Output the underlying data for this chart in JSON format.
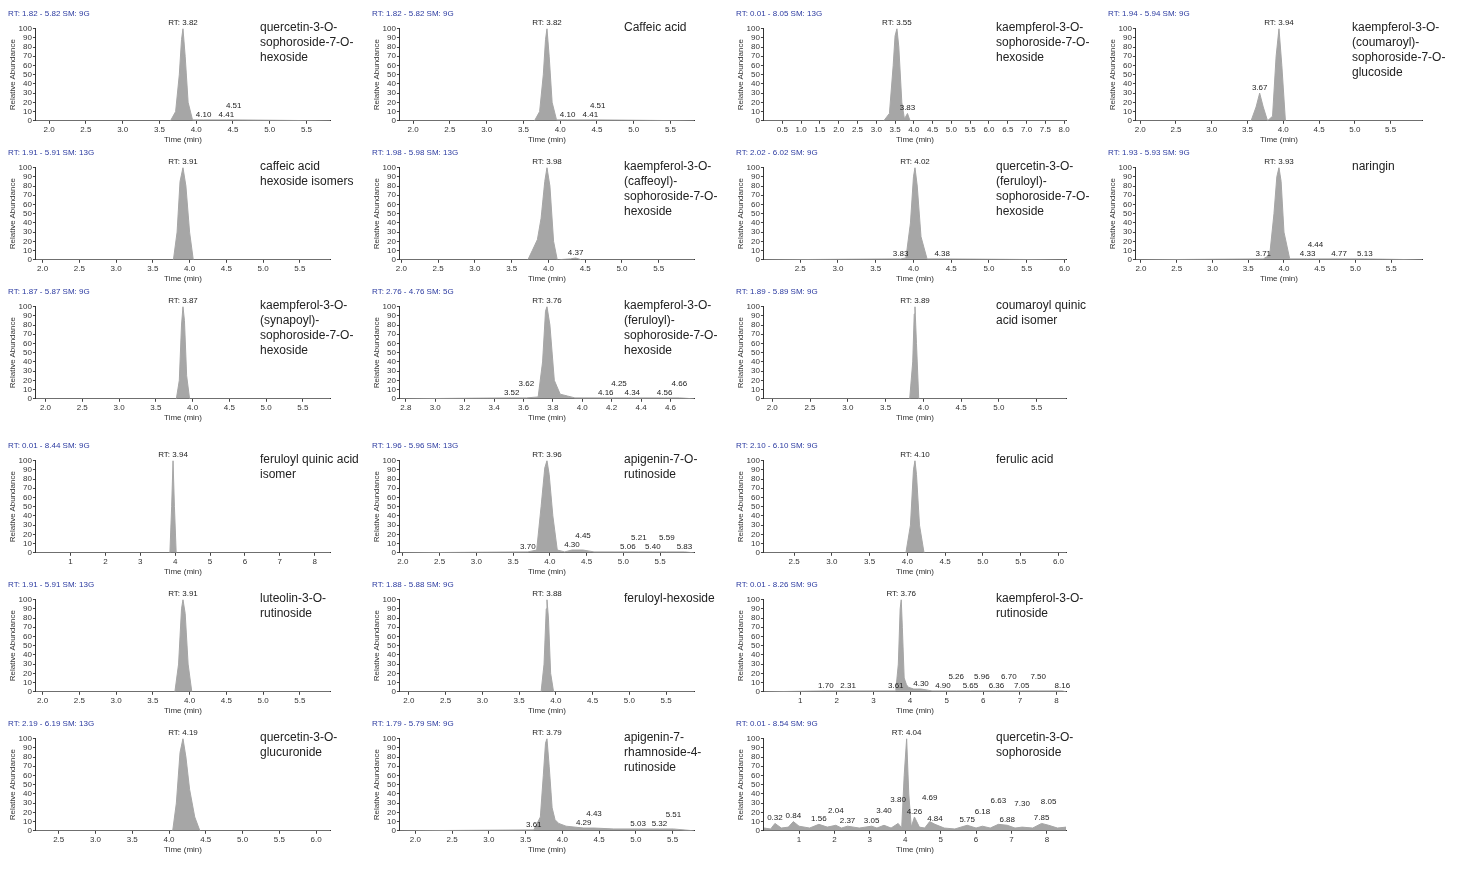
{
  "chart_data": [
    {
      "type": "area",
      "title": "quercetin-3-O-sophoroside-7-O-hexoside",
      "subtitle": "RT: 1.82 - 5.82 SM: 9G",
      "xlabel": "Time (min)",
      "ylabel": "Relative Abundance",
      "xlim": [
        1.82,
        5.82
      ],
      "xticks": [
        {
          "value": 2,
          "label": "2.0"
        },
        {
          "value": 2.5,
          "label": "2.5"
        },
        {
          "value": 3,
          "label": "3.0"
        },
        {
          "value": 3.5,
          "label": "3.5"
        },
        {
          "value": 4,
          "label": "4.0"
        },
        {
          "value": 4.5,
          "label": "4.5"
        },
        {
          "value": 5,
          "label": "5.0"
        },
        {
          "value": 5.5,
          "label": "5.5"
        }
      ],
      "ylim": [
        0,
        100
      ],
      "yticks": [
        0,
        10,
        20,
        30,
        40,
        50,
        60,
        70,
        80,
        90,
        100
      ],
      "x": [
        1.82,
        3.65,
        3.72,
        3.77,
        3.8,
        3.82,
        3.85,
        3.89,
        3.95,
        4.1,
        4.41,
        4.51,
        5.82
      ],
      "series": [
        {
          "color": "#a6a6a6",
          "values": [
            0,
            0,
            10,
            50,
            88,
            100,
            70,
            20,
            1,
            1,
            1,
            1,
            0
          ]
        }
      ],
      "annotations": [
        {
          "text": "RT: 3.82",
          "x": 3.82,
          "y": 100
        },
        {
          "text": "4.10",
          "x": 4.1,
          "y": 1
        },
        {
          "text": "4.41",
          "x": 4.41,
          "y": 1
        },
        {
          "text": "4.51",
          "x": 4.51,
          "y": 1
        }
      ]
    },
    {
      "type": "area",
      "title": "Caffeic acid",
      "subtitle": "RT: 1.82 - 5.82 SM: 9G",
      "xlabel": "Time (min)",
      "ylabel": "Relative Abundance",
      "xlim": [
        1.82,
        5.82
      ],
      "xticks": [
        {
          "value": 2,
          "label": "2.0"
        },
        {
          "value": 2.5,
          "label": "2.5"
        },
        {
          "value": 3,
          "label": "3.0"
        },
        {
          "value": 3.5,
          "label": "3.5"
        },
        {
          "value": 4,
          "label": "4.0"
        },
        {
          "value": 4.5,
          "label": "4.5"
        },
        {
          "value": 5,
          "label": "5.0"
        },
        {
          "value": 5.5,
          "label": "5.5"
        }
      ],
      "ylim": [
        0,
        100
      ],
      "yticks": [
        0,
        10,
        20,
        30,
        40,
        50,
        60,
        70,
        80,
        90,
        100
      ],
      "x": [
        1.82,
        3.65,
        3.72,
        3.77,
        3.8,
        3.82,
        3.85,
        3.89,
        3.95,
        4.1,
        4.41,
        4.51,
        5.82
      ],
      "series": [
        {
          "color": "#a6a6a6",
          "values": [
            0,
            0,
            10,
            50,
            88,
            100,
            70,
            20,
            1,
            1,
            1,
            1,
            0
          ]
        }
      ],
      "annotations": [
        {
          "text": "RT: 3.82",
          "x": 3.82,
          "y": 100
        },
        {
          "text": "4.10",
          "x": 4.1,
          "y": 1
        },
        {
          "text": "4.41",
          "x": 4.41,
          "y": 1
        },
        {
          "text": "4.51",
          "x": 4.51,
          "y": 1
        }
      ]
    },
    {
      "type": "area",
      "title": "kaempferol-3-O-sophoroside-7-O-hexoside",
      "subtitle": "RT: 0.01 - 8.05 SM: 13G",
      "xlabel": "Time (min)",
      "ylabel": "Relative Abundance",
      "xlim": [
        0.01,
        8.05
      ],
      "xticks": [
        0.5,
        {
          "value": 1,
          "label": "1.0"
        },
        1.5,
        {
          "value": 2,
          "label": "2.0"
        },
        2.5,
        {
          "value": 3,
          "label": "3.0"
        },
        3.5,
        {
          "value": 4,
          "label": "4.0"
        },
        4.5,
        {
          "value": 5,
          "label": "5.0"
        },
        5.5,
        {
          "value": 6,
          "label": "6.0"
        },
        6.5,
        {
          "value": 7,
          "label": "7.0"
        },
        7.5,
        {
          "value": 8,
          "label": "8.0"
        }
      ],
      "ylim": [
        0,
        100
      ],
      "yticks": [
        0,
        10,
        20,
        30,
        40,
        50,
        60,
        70,
        80,
        90,
        100
      ],
      "x": [
        0.01,
        3.2,
        3.35,
        3.45,
        3.5,
        3.55,
        3.6,
        3.68,
        3.75,
        3.83,
        3.9,
        8.05
      ],
      "series": [
        {
          "color": "#a6a6a6",
          "values": [
            0,
            0,
            8,
            60,
            92,
            100,
            80,
            20,
            2,
            8,
            0,
            0
          ]
        }
      ],
      "annotations": [
        {
          "text": "RT: 3.55",
          "x": 3.55,
          "y": 100
        },
        {
          "text": "3.83",
          "x": 3.83,
          "y": 8
        }
      ]
    },
    {
      "type": "area",
      "title": "kaempferol-3-O-(coumaroyl)-sophoroside-7-O-glucoside",
      "subtitle": "RT: 1.94 - 5.94 SM: 9G",
      "xlabel": "Time (min)",
      "ylabel": "Relative Abundance",
      "xlim": [
        1.94,
        5.94
      ],
      "xticks": [
        {
          "value": 2,
          "label": "2.0"
        },
        {
          "value": 2.5,
          "label": "2.5"
        },
        {
          "value": 3,
          "label": "3.0"
        },
        {
          "value": 3.5,
          "label": "3.5"
        },
        {
          "value": 4,
          "label": "4.0"
        },
        {
          "value": 4.5,
          "label": "4.5"
        },
        {
          "value": 5,
          "label": "5.0"
        },
        {
          "value": 5.5,
          "label": "5.5"
        }
      ],
      "ylim": [
        0,
        100
      ],
      "yticks": [
        0,
        10,
        20,
        30,
        40,
        50,
        60,
        70,
        80,
        90,
        100
      ],
      "x": [
        1.94,
        3.55,
        3.62,
        3.67,
        3.72,
        3.78,
        3.85,
        3.9,
        3.94,
        3.98,
        4.03,
        5.94
      ],
      "series": [
        {
          "color": "#a6a6a6",
          "values": [
            0,
            0,
            15,
            30,
            15,
            0,
            5,
            70,
            100,
            60,
            0,
            0
          ]
        }
      ],
      "annotations": [
        {
          "text": "3.67",
          "x": 3.67,
          "y": 30
        },
        {
          "text": "RT: 3.94",
          "x": 3.94,
          "y": 100
        }
      ]
    },
    {
      "type": "area",
      "title": "caffeic acid hexoside isomers",
      "subtitle": "RT: 1.91 - 5.91 SM: 13G",
      "xlabel": "Time (min)",
      "ylabel": "Relative Abundance",
      "xlim": [
        1.91,
        5.91
      ],
      "xticks": [
        {
          "value": 2,
          "label": "2.0"
        },
        {
          "value": 2.5,
          "label": "2.5"
        },
        {
          "value": 3,
          "label": "3.0"
        },
        {
          "value": 3.5,
          "label": "3.5"
        },
        {
          "value": 4,
          "label": "4.0"
        },
        {
          "value": 4.5,
          "label": "4.5"
        },
        {
          "value": 5,
          "label": "5.0"
        },
        {
          "value": 5.5,
          "label": "5.5"
        }
      ],
      "ylim": [
        0,
        100
      ],
      "yticks": [
        0,
        10,
        20,
        30,
        40,
        50,
        60,
        70,
        80,
        90,
        100
      ],
      "x": [
        1.91,
        3.78,
        3.83,
        3.87,
        3.91,
        3.95,
        4.0,
        4.05,
        5.91
      ],
      "series": [
        {
          "color": "#a6a6a6",
          "values": [
            0,
            0,
            30,
            85,
            100,
            80,
            30,
            0,
            0
          ]
        }
      ],
      "annotations": [
        {
          "text": "RT: 3.91",
          "x": 3.91,
          "y": 100
        }
      ]
    },
    {
      "type": "area",
      "title": "kaempferol-3-O-(caffeoyl)-sophoroside-7-O-hexoside",
      "subtitle": "RT: 1.98 - 5.98 SM: 13G",
      "xlabel": "Time (min)",
      "ylabel": "Relative Abundance",
      "xlim": [
        1.98,
        5.98
      ],
      "xticks": [
        {
          "value": 2,
          "label": "2.0"
        },
        {
          "value": 2.5,
          "label": "2.5"
        },
        {
          "value": 3,
          "label": "3.0"
        },
        {
          "value": 3.5,
          "label": "3.5"
        },
        {
          "value": 4,
          "label": "4.0"
        },
        {
          "value": 4.5,
          "label": "4.5"
        },
        {
          "value": 5,
          "label": "5.0"
        },
        {
          "value": 5.5,
          "label": "5.5"
        }
      ],
      "ylim": [
        0,
        100
      ],
      "yticks": [
        0,
        10,
        20,
        30,
        40,
        50,
        60,
        70,
        80,
        90,
        100
      ],
      "x": [
        1.98,
        3.72,
        3.78,
        3.85,
        3.9,
        3.95,
        3.98,
        4.02,
        4.07,
        4.12,
        4.3,
        4.37,
        4.45,
        5.98
      ],
      "series": [
        {
          "color": "#a6a6a6",
          "values": [
            0,
            0,
            10,
            22,
            45,
            85,
            100,
            80,
            20,
            0,
            1,
            2,
            0,
            0
          ]
        }
      ],
      "annotations": [
        {
          "text": "RT: 3.98",
          "x": 3.98,
          "y": 100
        },
        {
          "text": "4.37",
          "x": 4.37,
          "y": 2
        }
      ]
    },
    {
      "type": "area",
      "title": "quercetin-3-O-(feruloyl)-sophoroside-7-O-hexoside",
      "subtitle": "RT: 2.02 - 6.02 SM: 9G",
      "xlabel": "Time (min)",
      "ylabel": "Relative Abundance",
      "xlim": [
        2.02,
        6.02
      ],
      "xticks": [
        {
          "value": 2.5,
          "label": "2.5"
        },
        {
          "value": 3,
          "label": "3.0"
        },
        {
          "value": 3.5,
          "label": "3.5"
        },
        {
          "value": 4,
          "label": "4.0"
        },
        {
          "value": 4.5,
          "label": "4.5"
        },
        {
          "value": 5,
          "label": "5.0"
        },
        {
          "value": 5.5,
          "label": "5.5"
        },
        {
          "value": 6,
          "label": "6.0"
        }
      ],
      "ylim": [
        0,
        100
      ],
      "yticks": [
        0,
        10,
        20,
        30,
        40,
        50,
        60,
        70,
        80,
        90,
        100
      ],
      "x": [
        2.02,
        3.83,
        3.9,
        3.96,
        4.0,
        4.02,
        4.05,
        4.1,
        4.18,
        4.38,
        6.02
      ],
      "series": [
        {
          "color": "#a6a6a6",
          "values": [
            0,
            1,
            2,
            40,
            90,
            100,
            80,
            25,
            1,
            1,
            0
          ]
        }
      ],
      "annotations": [
        {
          "text": "3.83",
          "x": 3.83,
          "y": 1
        },
        {
          "text": "RT: 4.02",
          "x": 4.02,
          "y": 100
        },
        {
          "text": "4.38",
          "x": 4.38,
          "y": 1
        }
      ]
    },
    {
      "type": "area",
      "title": "naringin",
      "subtitle": "RT: 1.93 - 5.93 SM: 9G",
      "xlabel": "Time (min)",
      "ylabel": "Relative Abundance",
      "xlim": [
        1.93,
        5.93
      ],
      "xticks": [
        {
          "value": 2,
          "label": "2.0"
        },
        {
          "value": 2.5,
          "label": "2.5"
        },
        {
          "value": 3,
          "label": "3.0"
        },
        {
          "value": 3.5,
          "label": "3.5"
        },
        {
          "value": 4,
          "label": "4.0"
        },
        {
          "value": 4.5,
          "label": "4.5"
        },
        {
          "value": 5,
          "label": "5.0"
        },
        {
          "value": 5.5,
          "label": "5.5"
        }
      ],
      "ylim": [
        0,
        100
      ],
      "yticks": [
        0,
        10,
        20,
        30,
        40,
        50,
        60,
        70,
        80,
        90,
        100
      ],
      "x": [
        1.93,
        3.71,
        3.8,
        3.86,
        3.9,
        3.93,
        3.96,
        4.0,
        4.08,
        4.33,
        4.44,
        4.77,
        5.13,
        5.93
      ],
      "series": [
        {
          "color": "#a6a6a6",
          "values": [
            0,
            1,
            5,
            50,
            90,
            100,
            85,
            30,
            1,
            1,
            1,
            1,
            1,
            0
          ]
        }
      ],
      "annotations": [
        {
          "text": "3.71",
          "x": 3.71,
          "y": 1
        },
        {
          "text": "RT: 3.93",
          "x": 3.93,
          "y": 100
        },
        {
          "text": "4.33",
          "x": 4.33,
          "y": 1
        },
        {
          "text": "4.44",
          "x": 4.44,
          "y": 1
        },
        {
          "text": "4.77",
          "x": 4.77,
          "y": 1
        },
        {
          "text": "5.13",
          "x": 5.13,
          "y": 1
        }
      ]
    },
    {
      "type": "area",
      "title": "kaempferol-3-O-(synapoyl)-sophoroside-7-O-hexoside",
      "subtitle": "RT: 1.87 - 5.87 SM: 9G",
      "xlabel": "Time (min)",
      "ylabel": "Relative Abundance",
      "xlim": [
        1.87,
        5.87
      ],
      "xticks": [
        {
          "value": 2,
          "label": "2.0"
        },
        {
          "value": 2.5,
          "label": "2.5"
        },
        {
          "value": 3,
          "label": "3.0"
        },
        {
          "value": 3.5,
          "label": "3.5"
        },
        {
          "value": 4,
          "label": "4.0"
        },
        {
          "value": 4.5,
          "label": "4.5"
        },
        {
          "value": 5,
          "label": "5.0"
        },
        {
          "value": 5.5,
          "label": "5.5"
        }
      ],
      "ylim": [
        0,
        100
      ],
      "yticks": [
        0,
        10,
        20,
        30,
        40,
        50,
        60,
        70,
        80,
        90,
        100
      ],
      "x": [
        1.87,
        3.78,
        3.82,
        3.85,
        3.87,
        3.89,
        3.92,
        3.96,
        5.87
      ],
      "series": [
        {
          "color": "#a6a6a6",
          "values": [
            0,
            0,
            20,
            80,
            100,
            85,
            25,
            0,
            0
          ]
        }
      ],
      "annotations": [
        {
          "text": "RT: 3.87",
          "x": 3.87,
          "y": 100
        }
      ]
    },
    {
      "type": "area",
      "title": "kaempferol-3-O-(feruloyl)-sophoroside-7-O-hexoside",
      "subtitle": "RT: 2.76 - 4.76 SM: 5G",
      "xlabel": "Time (min)",
      "ylabel": "Relative Abundance",
      "xlim": [
        2.76,
        4.76
      ],
      "xticks": [
        2.8,
        {
          "value": 3,
          "label": "3.0"
        },
        3.2,
        3.4,
        3.6,
        3.8,
        {
          "value": 4,
          "label": "4.0"
        },
        4.2,
        4.4,
        4.6
      ],
      "ylim": [
        0,
        100
      ],
      "yticks": [
        0,
        10,
        20,
        30,
        40,
        50,
        60,
        70,
        80,
        90,
        100
      ],
      "x": [
        2.76,
        3.52,
        3.62,
        3.7,
        3.73,
        3.75,
        3.76,
        3.78,
        3.81,
        3.85,
        3.9,
        3.95,
        4.16,
        4.25,
        4.34,
        4.56,
        4.66,
        4.76
      ],
      "series": [
        {
          "color": "#a6a6a6",
          "values": [
            0,
            1,
            1,
            2,
            40,
            95,
            100,
            80,
            20,
            5,
            3,
            1,
            1,
            1,
            1,
            1,
            1,
            0
          ]
        }
      ],
      "annotations": [
        {
          "text": "3.52",
          "x": 3.52,
          "y": 1
        },
        {
          "text": "3.62",
          "x": 3.62,
          "y": 1
        },
        {
          "text": "RT: 3.76",
          "x": 3.76,
          "y": 100
        },
        {
          "text": "4.16",
          "x": 4.16,
          "y": 1
        },
        {
          "text": "4.25",
          "x": 4.25,
          "y": 1
        },
        {
          "text": "4.34",
          "x": 4.34,
          "y": 1
        },
        {
          "text": "4.56",
          "x": 4.56,
          "y": 1
        },
        {
          "text": "4.66",
          "x": 4.66,
          "y": 1
        }
      ]
    },
    {
      "type": "area",
      "title": "coumaroyl quinic acid isomer",
      "subtitle": "RT: 1.89 - 5.89 SM: 9G",
      "xlabel": "Time (min)",
      "ylabel": "Relative Abundance",
      "xlim": [
        1.89,
        5.89
      ],
      "xticks": [
        {
          "value": 2,
          "label": "2.0"
        },
        {
          "value": 2.5,
          "label": "2.5"
        },
        {
          "value": 3,
          "label": "3.0"
        },
        {
          "value": 3.5,
          "label": "3.5"
        },
        {
          "value": 4,
          "label": "4.0"
        },
        {
          "value": 4.5,
          "label": "4.5"
        },
        {
          "value": 5,
          "label": "5.0"
        },
        {
          "value": 5.5,
          "label": "5.5"
        }
      ],
      "ylim": [
        0,
        100
      ],
      "yticks": [
        0,
        10,
        20,
        30,
        40,
        50,
        60,
        70,
        80,
        90,
        100
      ],
      "x": [
        1.89,
        3.82,
        3.86,
        3.88,
        3.89,
        3.91,
        3.94,
        5.89
      ],
      "series": [
        {
          "color": "#a6a6a6",
          "values": [
            0,
            0,
            40,
            92,
            100,
            60,
            0,
            0
          ]
        }
      ],
      "annotations": [
        {
          "text": "RT: 3.89",
          "x": 3.89,
          "y": 100
        }
      ]
    },
    {
      "type": "area",
      "title": "feruloyl quinic acid isomer",
      "subtitle": "RT: 0.01 - 8.44 SM: 9G",
      "xlabel": "Time (min)",
      "ylabel": "Relative Abundance",
      "xlim": [
        0.01,
        8.44
      ],
      "xticks": [
        1,
        2,
        3,
        4,
        5,
        6,
        7,
        8
      ],
      "ylim": [
        0,
        100
      ],
      "yticks": [
        0,
        10,
        20,
        30,
        40,
        50,
        60,
        70,
        80,
        90,
        100
      ],
      "x": [
        0.01,
        3.85,
        3.9,
        3.94,
        3.98,
        4.03,
        8.44
      ],
      "series": [
        {
          "color": "#a6a6a6",
          "values": [
            0,
            0,
            50,
            100,
            50,
            0,
            0
          ]
        }
      ],
      "annotations": [
        {
          "text": "RT: 3.94",
          "x": 3.94,
          "y": 100
        }
      ]
    },
    {
      "type": "area",
      "title": "apigenin-7-O-rutinoside",
      "subtitle": "RT: 1.96 - 5.96 SM: 13G",
      "xlabel": "Time (min)",
      "ylabel": "Relative Abundance",
      "xlim": [
        1.96,
        5.96
      ],
      "xticks": [
        {
          "value": 2,
          "label": "2.0"
        },
        {
          "value": 2.5,
          "label": "2.5"
        },
        {
          "value": 3,
          "label": "3.0"
        },
        {
          "value": 3.5,
          "label": "3.5"
        },
        {
          "value": 4,
          "label": "4.0"
        },
        {
          "value": 4.5,
          "label": "4.5"
        },
        {
          "value": 5,
          "label": "5.0"
        },
        {
          "value": 5.5,
          "label": "5.5"
        }
      ],
      "ylim": [
        0,
        100
      ],
      "yticks": [
        0,
        10,
        20,
        30,
        40,
        50,
        60,
        70,
        80,
        90,
        100
      ],
      "x": [
        1.96,
        3.7,
        3.82,
        3.88,
        3.93,
        3.96,
        3.99,
        4.04,
        4.1,
        4.2,
        4.3,
        4.45,
        4.6,
        5.06,
        5.21,
        5.4,
        5.59,
        5.83,
        5.96
      ],
      "series": [
        {
          "color": "#a6a6a6",
          "values": [
            0,
            1,
            3,
            50,
            92,
            100,
            85,
            40,
            3,
            1,
            3,
            3,
            1,
            1,
            1,
            1,
            1,
            1,
            0
          ]
        }
      ],
      "annotations": [
        {
          "text": "3.70",
          "x": 3.7,
          "y": 1
        },
        {
          "text": "RT: 3.96",
          "x": 3.96,
          "y": 100
        },
        {
          "text": "4.30",
          "x": 4.3,
          "y": 3
        },
        {
          "text": "4.45",
          "x": 4.45,
          "y": 3
        },
        {
          "text": "5.06",
          "x": 5.06,
          "y": 1
        },
        {
          "text": "5.21",
          "x": 5.21,
          "y": 1
        },
        {
          "text": "5.40",
          "x": 5.4,
          "y": 1
        },
        {
          "text": "5.59",
          "x": 5.59,
          "y": 1
        },
        {
          "text": "5.83",
          "x": 5.83,
          "y": 1
        }
      ]
    },
    {
      "type": "area",
      "title": "ferulic acid",
      "subtitle": "RT: 2.10 - 6.10 SM: 9G",
      "xlabel": "Time (min)",
      "ylabel": "Relative Abundance",
      "xlim": [
        2.1,
        6.1
      ],
      "xticks": [
        {
          "value": 2.5,
          "label": "2.5"
        },
        {
          "value": 3,
          "label": "3.0"
        },
        {
          "value": 3.5,
          "label": "3.5"
        },
        {
          "value": 4,
          "label": "4.0"
        },
        {
          "value": 4.5,
          "label": "4.5"
        },
        {
          "value": 5,
          "label": "5.0"
        },
        {
          "value": 5.5,
          "label": "5.5"
        },
        {
          "value": 6,
          "label": "6.0"
        }
      ],
      "ylim": [
        0,
        100
      ],
      "yticks": [
        0,
        10,
        20,
        30,
        40,
        50,
        60,
        70,
        80,
        90,
        100
      ],
      "x": [
        2.1,
        3.98,
        4.04,
        4.08,
        4.1,
        4.12,
        4.16,
        4.22,
        6.1
      ],
      "series": [
        {
          "color": "#a6a6a6",
          "values": [
            0,
            0,
            30,
            90,
            100,
            85,
            30,
            0,
            0
          ]
        }
      ],
      "annotations": [
        {
          "text": "RT: 4.10",
          "x": 4.1,
          "y": 100
        }
      ]
    },
    {
      "type": "area",
      "title": "luteolin-3-O-rutinoside",
      "subtitle": "RT: 1.91 - 5.91 SM: 13G",
      "xlabel": "Time (min)",
      "ylabel": "Relative Abundance",
      "xlim": [
        1.91,
        5.91
      ],
      "xticks": [
        {
          "value": 2,
          "label": "2.0"
        },
        {
          "value": 2.5,
          "label": "2.5"
        },
        {
          "value": 3,
          "label": "3.0"
        },
        {
          "value": 3.5,
          "label": "3.5"
        },
        {
          "value": 4,
          "label": "4.0"
        },
        {
          "value": 4.5,
          "label": "4.5"
        },
        {
          "value": 5,
          "label": "5.0"
        },
        {
          "value": 5.5,
          "label": "5.5"
        }
      ],
      "ylim": [
        0,
        100
      ],
      "yticks": [
        0,
        10,
        20,
        30,
        40,
        50,
        60,
        70,
        80,
        90,
        100
      ],
      "x": [
        1.91,
        3.8,
        3.85,
        3.89,
        3.91,
        3.94,
        3.98,
        4.03,
        5.91
      ],
      "series": [
        {
          "color": "#a6a6a6",
          "values": [
            0,
            0,
            30,
            90,
            100,
            85,
            30,
            0,
            0
          ]
        }
      ],
      "annotations": [
        {
          "text": "RT: 3.91",
          "x": 3.91,
          "y": 100
        }
      ]
    },
    {
      "type": "area",
      "title": "feruloyl-hexoside",
      "subtitle": "RT: 1.88 - 5.88 SM: 9G",
      "xlabel": "Time (min)",
      "ylabel": "Relative Abundance",
      "xlim": [
        1.88,
        5.88
      ],
      "xticks": [
        {
          "value": 2,
          "label": "2.0"
        },
        {
          "value": 2.5,
          "label": "2.5"
        },
        {
          "value": 3,
          "label": "3.0"
        },
        {
          "value": 3.5,
          "label": "3.5"
        },
        {
          "value": 4,
          "label": "4.0"
        },
        {
          "value": 4.5,
          "label": "4.5"
        },
        {
          "value": 5,
          "label": "5.0"
        },
        {
          "value": 5.5,
          "label": "5.5"
        }
      ],
      "ylim": [
        0,
        100
      ],
      "yticks": [
        0,
        10,
        20,
        30,
        40,
        50,
        60,
        70,
        80,
        90,
        100
      ],
      "x": [
        1.88,
        3.8,
        3.84,
        3.87,
        3.88,
        3.9,
        3.93,
        3.97,
        5.88
      ],
      "series": [
        {
          "color": "#a6a6a6",
          "values": [
            0,
            0,
            30,
            90,
            100,
            80,
            20,
            0,
            0
          ]
        }
      ],
      "annotations": [
        {
          "text": "RT: 3.88",
          "x": 3.88,
          "y": 100
        }
      ]
    },
    {
      "type": "area",
      "title": "kaempferol-3-O-rutinoside",
      "subtitle": "RT: 0.01 - 8.26 SM: 9G",
      "xlabel": "Time (min)",
      "ylabel": "Relative Abundance",
      "xlim": [
        0.01,
        8.26
      ],
      "xticks": [
        1,
        2,
        3,
        4,
        5,
        6,
        7,
        8
      ],
      "ylim": [
        0,
        100
      ],
      "yticks": [
        0,
        10,
        20,
        30,
        40,
        50,
        60,
        70,
        80,
        90,
        100
      ],
      "x": [
        0.01,
        1.7,
        2.31,
        3.61,
        3.68,
        3.73,
        3.76,
        3.79,
        3.84,
        3.9,
        3.95,
        4.1,
        4.3,
        4.6,
        4.9,
        5.26,
        5.65,
        5.96,
        6.36,
        6.7,
        7.05,
        7.5,
        8.16,
        8.26
      ],
      "series": [
        {
          "color": "#a6a6a6",
          "values": [
            0,
            1,
            1,
            1,
            30,
            90,
            100,
            70,
            15,
            8,
            5,
            3,
            3,
            1,
            1,
            1,
            1,
            1,
            1,
            1,
            1,
            1,
            1,
            0
          ]
        }
      ],
      "annotations": [
        {
          "text": "1.70",
          "x": 1.7,
          "y": 1
        },
        {
          "text": "2.31",
          "x": 2.31,
          "y": 1
        },
        {
          "text": "3.61",
          "x": 3.61,
          "y": 1
        },
        {
          "text": "RT: 3.76",
          "x": 3.76,
          "y": 100
        },
        {
          "text": "4.30",
          "x": 4.3,
          "y": 3
        },
        {
          "text": "4.90",
          "x": 4.9,
          "y": 1
        },
        {
          "text": "5.26",
          "x": 5.26,
          "y": 1
        },
        {
          "text": "5.65",
          "x": 5.65,
          "y": 1
        },
        {
          "text": "5.96",
          "x": 5.96,
          "y": 1
        },
        {
          "text": "6.36",
          "x": 6.36,
          "y": 1
        },
        {
          "text": "6.70",
          "x": 6.7,
          "y": 1
        },
        {
          "text": "7.05",
          "x": 7.05,
          "y": 1
        },
        {
          "text": "7.50",
          "x": 7.5,
          "y": 1
        },
        {
          "text": "8.16",
          "x": 8.16,
          "y": 1
        }
      ]
    },
    {
      "type": "area",
      "title": "quercetin-3-O-glucuronide",
      "subtitle": "RT: 2.19 - 6.19 SM: 13G",
      "xlabel": "Time (min)",
      "ylabel": "Relative Abundance",
      "xlim": [
        2.19,
        6.19
      ],
      "xticks": [
        {
          "value": 2.5,
          "label": "2.5"
        },
        {
          "value": 3,
          "label": "3.0"
        },
        {
          "value": 3.5,
          "label": "3.5"
        },
        {
          "value": 4,
          "label": "4.0"
        },
        {
          "value": 4.5,
          "label": "4.5"
        },
        {
          "value": 5,
          "label": "5.0"
        },
        {
          "value": 5.5,
          "label": "5.5"
        },
        {
          "value": 6,
          "label": "6.0"
        }
      ],
      "ylim": [
        0,
        100
      ],
      "yticks": [
        0,
        10,
        20,
        30,
        40,
        50,
        60,
        70,
        80,
        90,
        100
      ],
      "x": [
        2.19,
        4.05,
        4.1,
        4.15,
        4.19,
        4.23,
        4.28,
        4.35,
        4.42,
        6.19
      ],
      "series": [
        {
          "color": "#a6a6a6",
          "values": [
            0,
            0,
            30,
            85,
            100,
            80,
            45,
            15,
            0,
            0
          ]
        }
      ],
      "annotations": [
        {
          "text": "RT: 4.19",
          "x": 4.19,
          "y": 100
        }
      ]
    },
    {
      "type": "area",
      "title": "apigenin-7-rhamnoside-4-rutinoside",
      "subtitle": "RT: 1.79 - 5.79 SM: 9G",
      "xlabel": "Time (min)",
      "ylabel": "Relative Abundance",
      "xlim": [
        1.79,
        5.79
      ],
      "xticks": [
        {
          "value": 2,
          "label": "2.0"
        },
        {
          "value": 2.5,
          "label": "2.5"
        },
        {
          "value": 3,
          "label": "3.0"
        },
        {
          "value": 3.5,
          "label": "3.5"
        },
        {
          "value": 4,
          "label": "4.0"
        },
        {
          "value": 4.5,
          "label": "4.5"
        },
        {
          "value": 5,
          "label": "5.0"
        },
        {
          "value": 5.5,
          "label": "5.5"
        }
      ],
      "ylim": [
        0,
        100
      ],
      "yticks": [
        0,
        10,
        20,
        30,
        40,
        50,
        60,
        70,
        80,
        90,
        100
      ],
      "x": [
        1.79,
        3.61,
        3.7,
        3.74,
        3.77,
        3.79,
        3.82,
        3.86,
        3.9,
        3.95,
        4.05,
        4.29,
        4.43,
        4.7,
        5.03,
        5.32,
        5.51,
        5.79
      ],
      "series": [
        {
          "color": "#a6a6a6",
          "values": [
            0,
            1,
            15,
            60,
            95,
            100,
            70,
            25,
            12,
            8,
            5,
            3,
            3,
            2,
            2,
            2,
            2,
            0
          ]
        }
      ],
      "annotations": [
        {
          "text": "3.61",
          "x": 3.61,
          "y": 1
        },
        {
          "text": "RT: 3.79",
          "x": 3.79,
          "y": 100
        },
        {
          "text": "4.29",
          "x": 4.29,
          "y": 3
        },
        {
          "text": "4.43",
          "x": 4.43,
          "y": 3
        },
        {
          "text": "5.03",
          "x": 5.03,
          "y": 2
        },
        {
          "text": "5.32",
          "x": 5.32,
          "y": 2
        },
        {
          "text": "5.51",
          "x": 5.51,
          "y": 2
        }
      ]
    },
    {
      "type": "area",
      "title": "quercetin-3-O-sophoroside",
      "subtitle": "RT: 0.01 - 8.54 SM: 9G",
      "xlabel": "Time (min)",
      "ylabel": "Relative Abundance",
      "xlim": [
        0.01,
        8.54
      ],
      "xticks": [
        1,
        2,
        3,
        4,
        5,
        6,
        7,
        8
      ],
      "ylim": [
        0,
        100
      ],
      "yticks": [
        0,
        10,
        20,
        30,
        40,
        50,
        60,
        70,
        80,
        90,
        100
      ],
      "x": [
        0.01,
        0.2,
        0.32,
        0.5,
        0.7,
        0.84,
        1.0,
        1.3,
        1.56,
        1.8,
        2.04,
        2.2,
        2.37,
        2.7,
        3.05,
        3.2,
        3.4,
        3.6,
        3.8,
        3.9,
        3.97,
        4.04,
        4.1,
        4.17,
        4.26,
        4.4,
        4.55,
        4.69,
        4.84,
        5.1,
        5.4,
        5.75,
        6.0,
        6.18,
        6.4,
        6.63,
        6.88,
        7.1,
        7.3,
        7.6,
        7.85,
        8.05,
        8.3,
        8.54
      ],
      "series": [
        {
          "color": "#a6a6a6",
          "values": [
            3,
            2,
            8,
            3,
            4,
            10,
            5,
            3,
            7,
            4,
            6,
            3,
            5,
            3,
            5,
            3,
            6,
            3,
            8,
            3,
            60,
            100,
            40,
            4,
            15,
            4,
            3,
            10,
            7,
            3,
            2,
            6,
            3,
            5,
            3,
            7,
            6,
            3,
            4,
            3,
            8,
            6,
            3,
            4
          ]
        }
      ],
      "annotations": [
        {
          "text": "0.32",
          "x": 0.32,
          "y": 8
        },
        {
          "text": "0.84",
          "x": 0.84,
          "y": 10
        },
        {
          "text": "1.56",
          "x": 1.56,
          "y": 7
        },
        {
          "text": "2.04",
          "x": 2.04,
          "y": 6
        },
        {
          "text": "2.37",
          "x": 2.37,
          "y": 5
        },
        {
          "text": "3.05",
          "x": 3.05,
          "y": 5
        },
        {
          "text": "3.40",
          "x": 3.4,
          "y": 6
        },
        {
          "text": "3.80",
          "x": 3.8,
          "y": 8
        },
        {
          "text": "RT: 4.04",
          "x": 4.04,
          "y": 100
        },
        {
          "text": "4.26",
          "x": 4.26,
          "y": 15
        },
        {
          "text": "4.69",
          "x": 4.69,
          "y": 10
        },
        {
          "text": "4.84",
          "x": 4.84,
          "y": 7
        },
        {
          "text": "5.75",
          "x": 5.75,
          "y": 6
        },
        {
          "text": "6.18",
          "x": 6.18,
          "y": 5
        },
        {
          "text": "6.63",
          "x": 6.63,
          "y": 7
        },
        {
          "text": "6.88",
          "x": 6.88,
          "y": 6
        },
        {
          "text": "7.30",
          "x": 7.3,
          "y": 4
        },
        {
          "text": "7.85",
          "x": 7.85,
          "y": 8
        },
        {
          "text": "8.05",
          "x": 8.05,
          "y": 6
        }
      ]
    }
  ]
}
